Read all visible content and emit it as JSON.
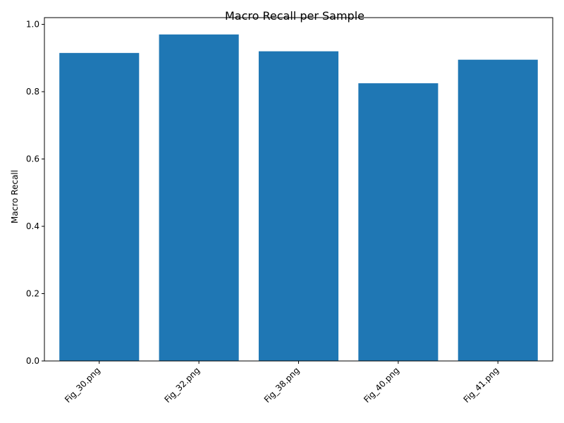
{
  "chart_data": {
    "type": "bar",
    "title": "Macro Recall per Sample",
    "xlabel": "",
    "ylabel": "Macro Recall",
    "categories": [
      "Fig_30.png",
      "Fig_32.png",
      "Fig_38.png",
      "Fig_40.png",
      "Fig_41.png"
    ],
    "values": [
      0.915,
      0.97,
      0.92,
      0.825,
      0.895
    ],
    "ylim": [
      0,
      1.02
    ],
    "yticks": [
      "0.0",
      "0.2",
      "0.4",
      "0.6",
      "0.8",
      "1.0"
    ],
    "bar_color": "#1f77b4",
    "grid": false,
    "legend": "none"
  }
}
